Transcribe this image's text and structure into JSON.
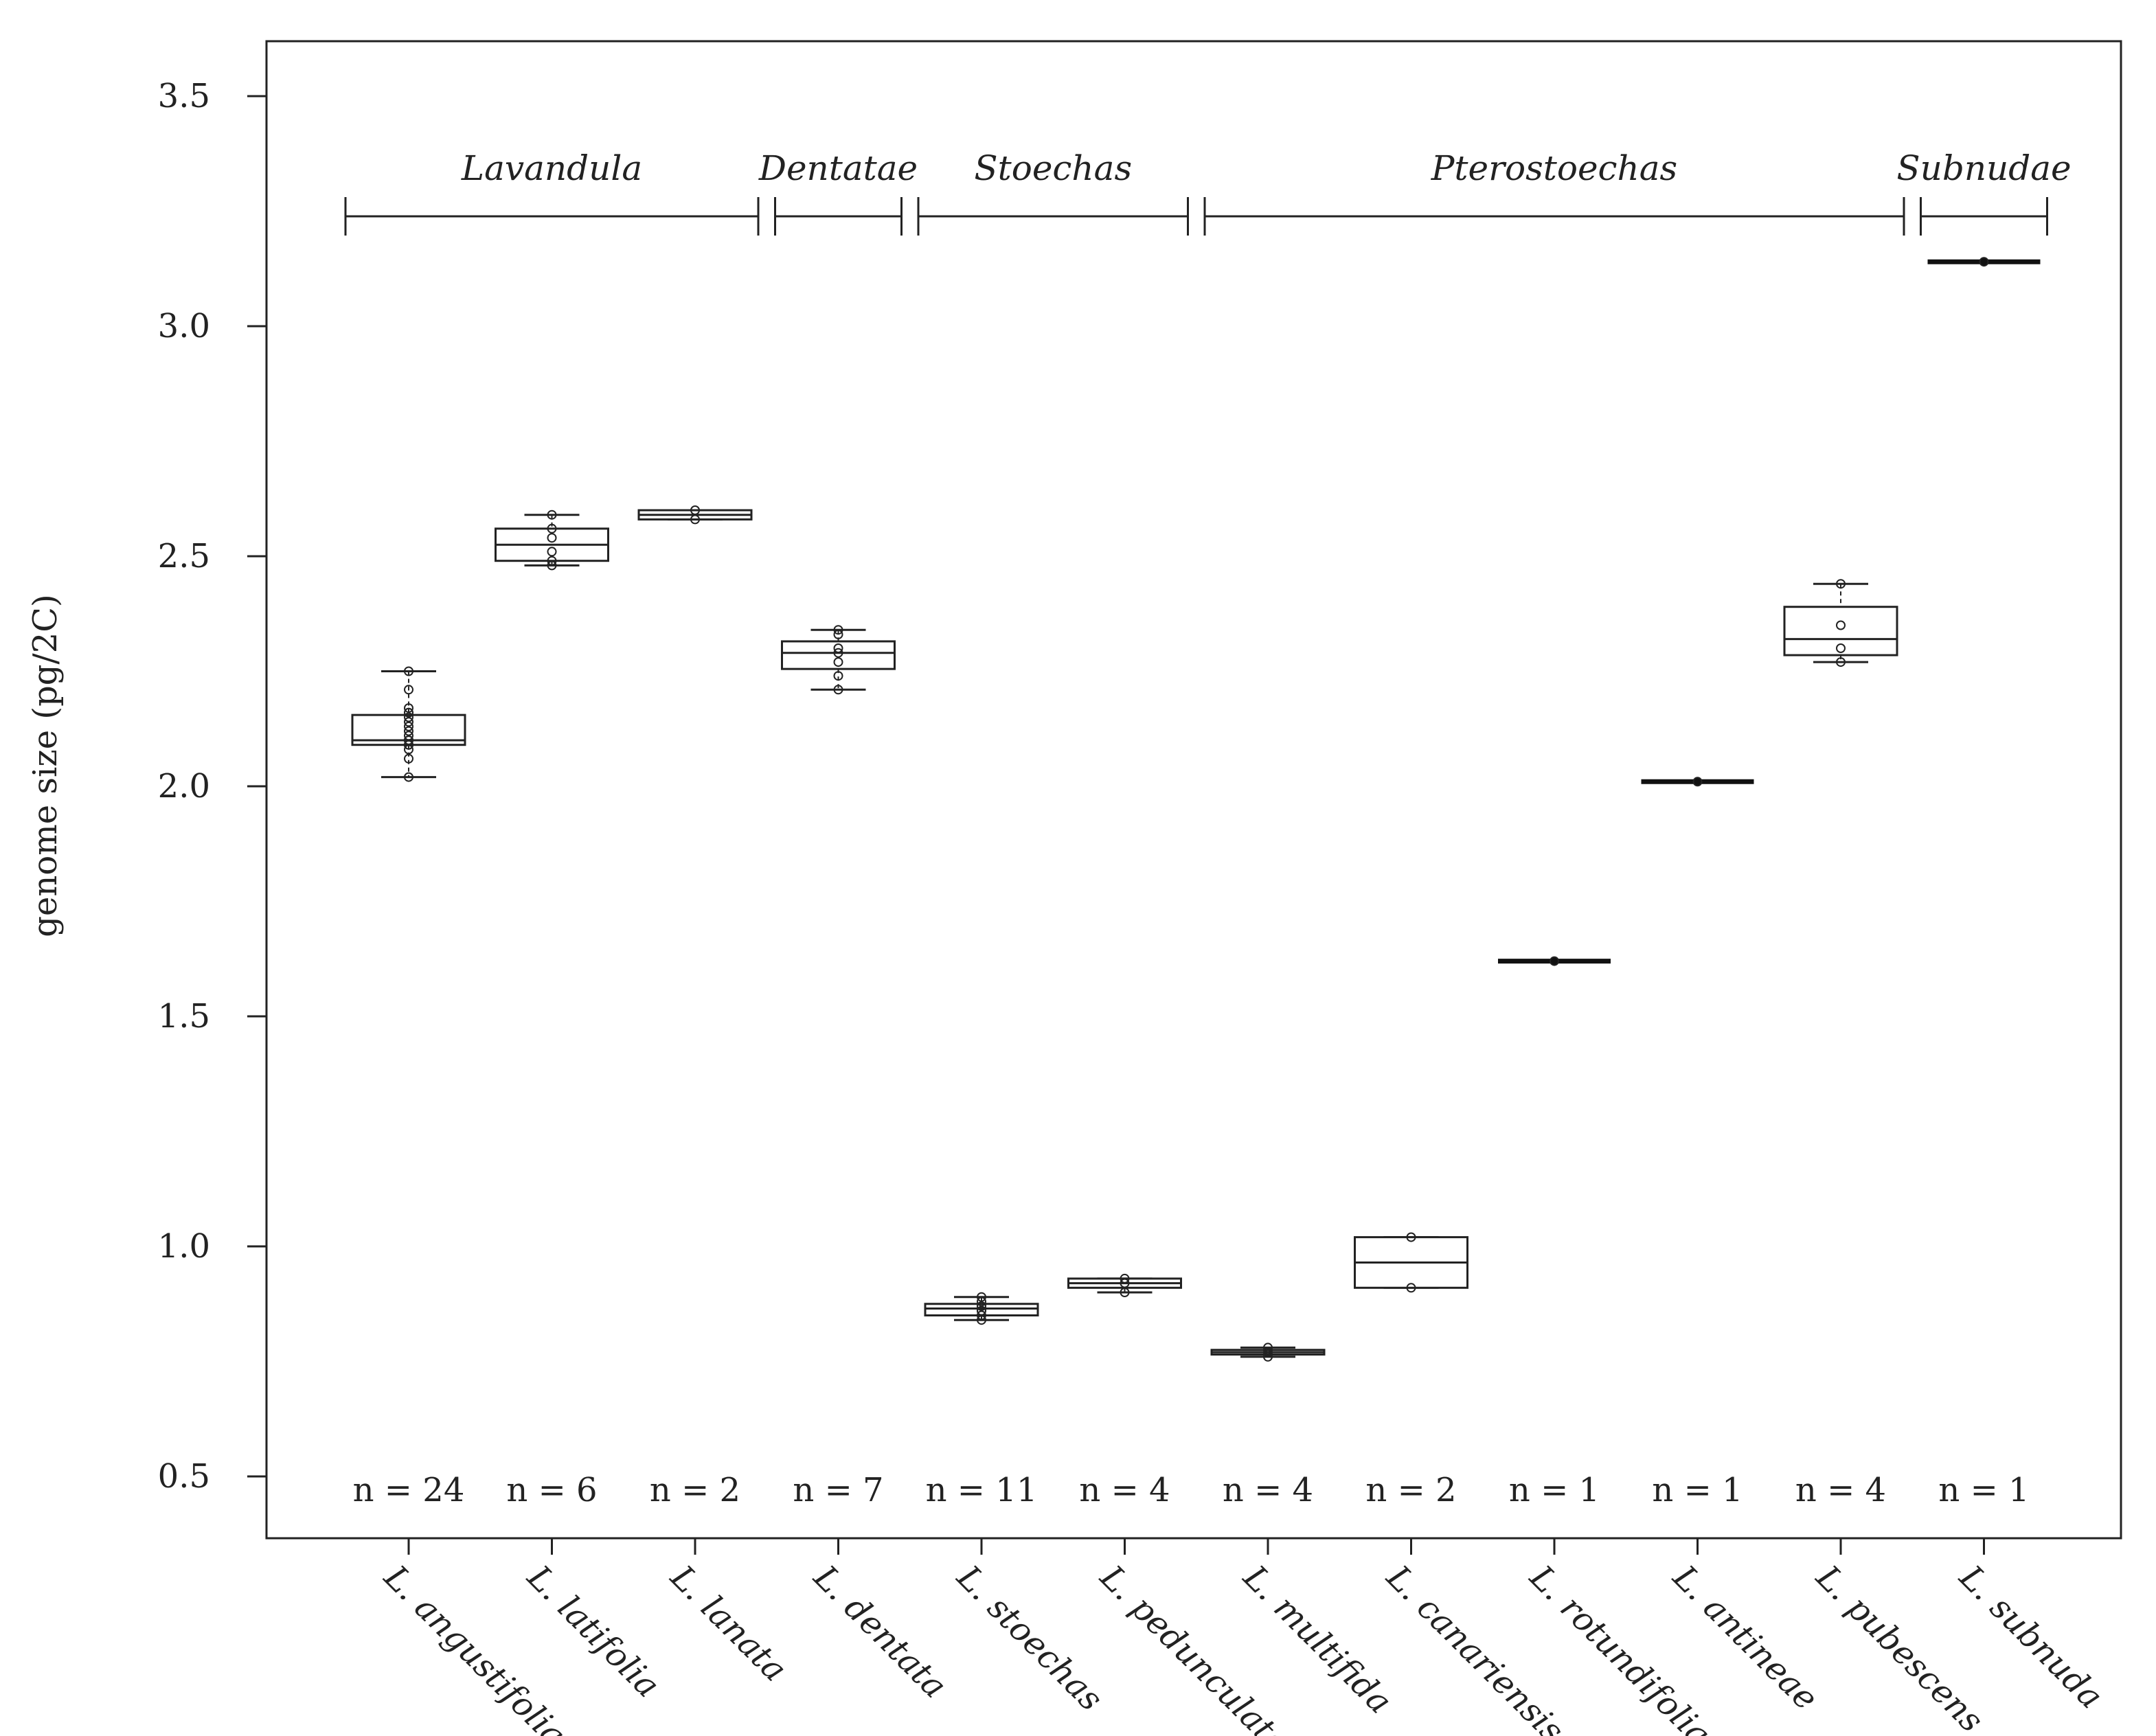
{
  "chart_data": {
    "type": "box",
    "title": "",
    "xlabel": "",
    "ylabel": "genome size (pg/2C)",
    "ylim": [
      0.45,
      3.6
    ],
    "yticks": [
      "0.5",
      "1.0",
      "1.5",
      "2.0",
      "2.5",
      "3.0",
      "3.5"
    ],
    "grid": false,
    "sections": [
      {
        "name": "Lavandula",
        "from": 0,
        "to": 2
      },
      {
        "name": "Dentatae",
        "from": 3,
        "to": 3
      },
      {
        "name": "Stoechas",
        "from": 4,
        "to": 5
      },
      {
        "name": "Pterostoechas",
        "from": 6,
        "to": 10
      },
      {
        "name": "Subnudae",
        "from": 11,
        "to": 11
      }
    ],
    "categories": [
      "L. angustifolia",
      "L. latifolia",
      "L. lanata",
      "L. dentata",
      "L. stoechas",
      "L. pedunculata",
      "L. multifida",
      "L. canariensis",
      "L. rotundifolia",
      "L. antineae",
      "L. pubescens",
      "L. subnuda"
    ],
    "n_labels": [
      "n = 24",
      "n = 6",
      "n = 2",
      "n = 7",
      "n = 11",
      "n = 4",
      "n = 4",
      "n = 2",
      "n = 1",
      "n = 1",
      "n = 4",
      "n = 1"
    ],
    "boxes": [
      {
        "min": 2.02,
        "q1": 2.09,
        "median": 2.1,
        "q3": 2.155,
        "max": 2.25,
        "points": [
          2.02,
          2.06,
          2.08,
          2.09,
          2.09,
          2.09,
          2.1,
          2.1,
          2.1,
          2.11,
          2.12,
          2.13,
          2.14,
          2.15,
          2.16,
          2.16,
          2.17,
          2.21,
          2.25
        ]
      },
      {
        "min": 2.48,
        "q1": 2.49,
        "median": 2.525,
        "q3": 2.56,
        "max": 2.59,
        "points": [
          2.48,
          2.49,
          2.51,
          2.54,
          2.56,
          2.59
        ]
      },
      {
        "min": 2.58,
        "q1": 2.58,
        "median": 2.59,
        "q3": 2.6,
        "max": 2.6,
        "points": [
          2.58,
          2.6
        ]
      },
      {
        "min": 2.21,
        "q1": 2.255,
        "median": 2.29,
        "q3": 2.315,
        "max": 2.34,
        "points": [
          2.21,
          2.24,
          2.27,
          2.29,
          2.3,
          2.33,
          2.34
        ]
      },
      {
        "min": 0.84,
        "q1": 0.85,
        "median": 0.865,
        "q3": 0.875,
        "max": 0.89,
        "points": [
          0.84,
          0.85,
          0.86,
          0.86,
          0.87,
          0.87,
          0.88,
          0.89
        ]
      },
      {
        "min": 0.9,
        "q1": 0.91,
        "median": 0.92,
        "q3": 0.93,
        "max": 0.93,
        "points": [
          0.9,
          0.92,
          0.93
        ]
      },
      {
        "min": 0.76,
        "q1": 0.765,
        "median": 0.77,
        "q3": 0.775,
        "max": 0.78,
        "points": [
          0.76,
          0.77,
          0.78
        ]
      },
      {
        "min": 0.91,
        "q1": 0.91,
        "median": 0.965,
        "q3": 1.02,
        "max": 1.02,
        "points": [
          0.91,
          1.02
        ]
      },
      {
        "min": 1.62,
        "q1": 1.62,
        "median": 1.62,
        "q3": 1.62,
        "max": 1.62,
        "points": [
          1.62
        ]
      },
      {
        "min": 2.01,
        "q1": 2.01,
        "median": 2.01,
        "q3": 2.01,
        "max": 2.01,
        "points": [
          2.01
        ]
      },
      {
        "min": 2.27,
        "q1": 2.285,
        "median": 2.32,
        "q3": 2.39,
        "max": 2.44,
        "points": [
          2.27,
          2.3,
          2.35,
          2.44
        ]
      },
      {
        "min": 3.14,
        "q1": 3.14,
        "median": 3.14,
        "q3": 3.14,
        "max": 3.14,
        "points": [
          3.14
        ]
      }
    ]
  }
}
